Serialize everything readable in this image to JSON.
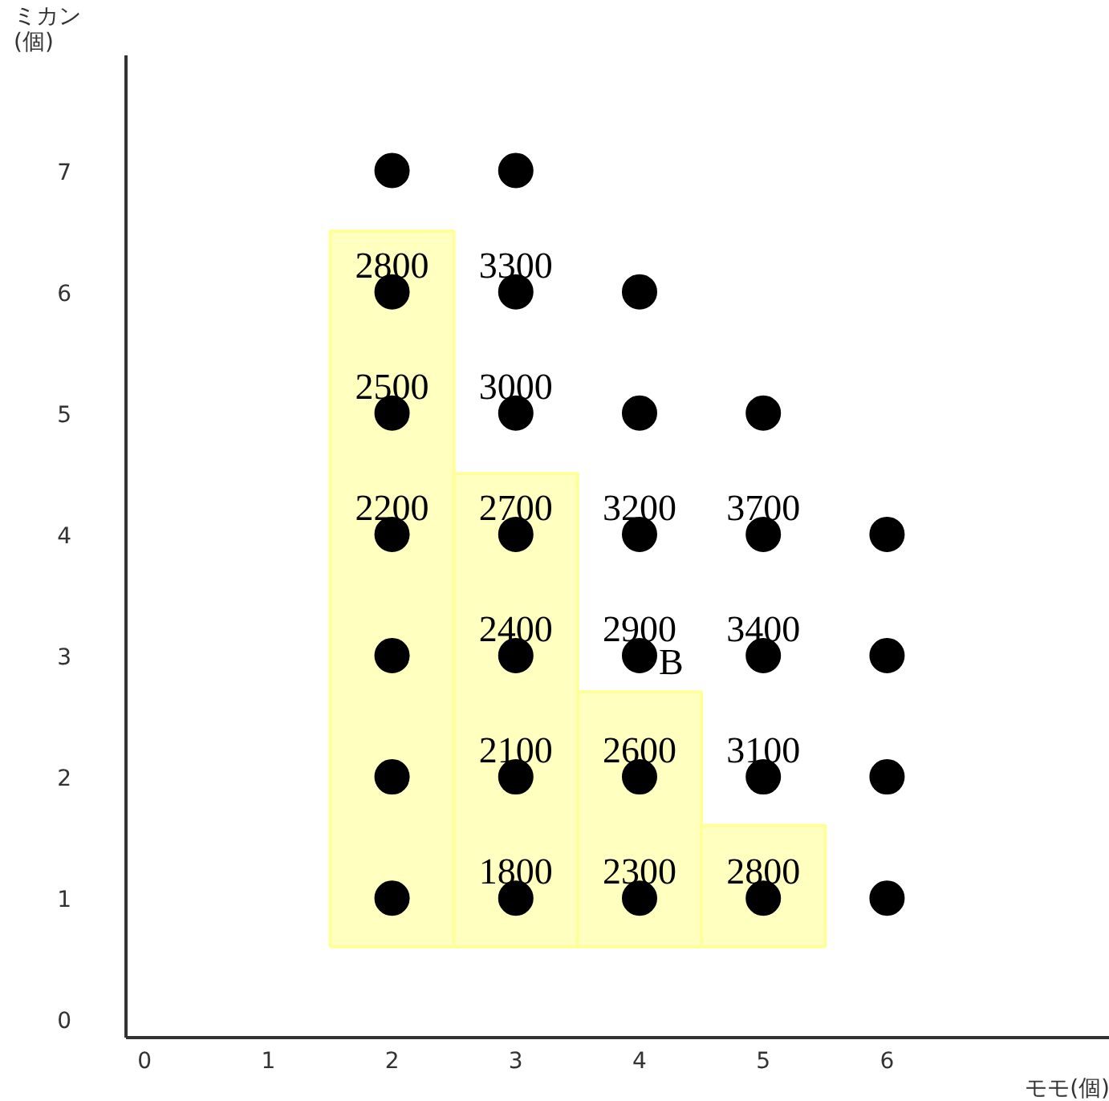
{
  "chart_data": {
    "type": "scatter",
    "xlabel": "モモ(個)",
    "ylabel": "ミカン\n(個)",
    "xlim": [
      -0.15,
      7.8
    ],
    "ylim": [
      -0.15,
      7.95
    ],
    "xticks": [
      0,
      1,
      2,
      3,
      4,
      5,
      6
    ],
    "yticks": [
      0,
      1,
      2,
      3,
      4,
      5,
      6,
      7
    ],
    "grid": false,
    "marker": "circle",
    "series": [
      {
        "type": "bar",
        "color": "#ffffbf",
        "x": [
          2,
          3,
          4,
          5
        ],
        "base": [
          0.6,
          0.6,
          0.6,
          0.6
        ],
        "values": [
          5.9,
          3.9,
          2.1,
          1.0
        ]
      },
      {
        "color": "#000000",
        "x": [
          2,
          2,
          2,
          2,
          2,
          2,
          2,
          3,
          3,
          3,
          3,
          3,
          3,
          3,
          4,
          4,
          4,
          4,
          4,
          4,
          5,
          5,
          5,
          5,
          5,
          6,
          6,
          6,
          6
        ],
        "values": [
          1,
          2,
          3,
          4,
          5,
          6,
          7,
          1,
          2,
          3,
          4,
          5,
          6,
          7,
          1,
          2,
          3,
          4,
          5,
          6,
          1,
          2,
          3,
          4,
          5,
          1,
          2,
          3,
          4
        ]
      }
    ],
    "annotations": [
      {
        "text": "2800",
        "x": 2,
        "y": 6
      },
      {
        "text": "3300",
        "x": 3,
        "y": 6
      },
      {
        "text": "2500",
        "x": 2,
        "y": 5
      },
      {
        "text": "3000",
        "x": 3,
        "y": 5
      },
      {
        "text": "2200",
        "x": 2,
        "y": 4
      },
      {
        "text": "2700",
        "x": 3,
        "y": 4
      },
      {
        "text": "3200",
        "x": 4,
        "y": 4
      },
      {
        "text": "3700",
        "x": 5,
        "y": 4
      },
      {
        "text": "2400",
        "x": 3,
        "y": 3
      },
      {
        "text": "2900",
        "x": 4,
        "y": 3
      },
      {
        "text": "3400",
        "x": 5,
        "y": 3
      },
      {
        "text": "B",
        "x": 4,
        "y": 3
      },
      {
        "text": "2100",
        "x": 3,
        "y": 2
      },
      {
        "text": "2600",
        "x": 4,
        "y": 2
      },
      {
        "text": "3100",
        "x": 5,
        "y": 2
      },
      {
        "text": "1800",
        "x": 3,
        "y": 1
      },
      {
        "text": "2300",
        "x": 4,
        "y": 1
      },
      {
        "text": "2800",
        "x": 5,
        "y": 1
      }
    ]
  }
}
